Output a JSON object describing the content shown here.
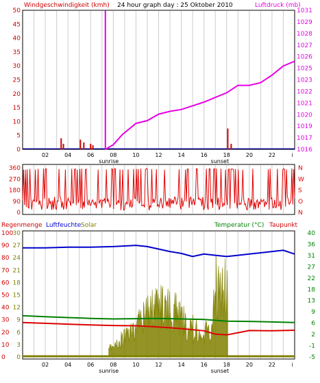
{
  "header": {
    "left": "Windgeschwindigkeit (kmh)",
    "center": "24 hour graph day : 25 Oktober 2010",
    "right": "Luftdruck (mb)"
  },
  "x_ticks": [
    "02",
    "04",
    "06",
    "08",
    "10",
    "12",
    "14",
    "16",
    "18",
    "20",
    "22",
    "i"
  ],
  "sun_labels": {
    "sunrise": "sunrise",
    "sunset": "sunset"
  },
  "colors": {
    "wind": "#cc0000",
    "pressure": "#e600e6",
    "direction": "#e00000",
    "humidity": "#0000cc",
    "solar": "#808000",
    "temperature": "#008000",
    "dewpoint": "#dd0000",
    "rain": "#cc0000",
    "frame": "#000000",
    "grid": "#cccccc"
  },
  "panel3_header": {
    "rain": "Regenmenge",
    "humidity": "Luftfeuchte",
    "solar": "Solar",
    "temperature": "Temperatur (°C)",
    "dewpoint": "Taupunkt"
  },
  "chart_data": [
    {
      "type": "line",
      "title": "24 hour graph day : 25 Oktober 2010",
      "x_range": [
        0,
        24
      ],
      "y_left_label": "Windgeschwindigkeit (kmh)",
      "y_left_ticks": [
        "0",
        "5",
        "10",
        "15",
        "20",
        "25",
        "30",
        "35",
        "40",
        "45",
        "50"
      ],
      "ylim_left": [
        0,
        50
      ],
      "y_right_label": "Luftdruck (mb)",
      "y_right_ticks": [
        "1016",
        "1017",
        "1019",
        "1020",
        "1021",
        "1022",
        "1023",
        "1025",
        "1026",
        "1027",
        "1028",
        "1029",
        "1031"
      ],
      "ylim_right": [
        1016,
        1031
      ],
      "series": [
        {
          "name": "Windgeschwindigkeit (kmh)",
          "style": "bars",
          "points": [
            [
              3.4,
              4
            ],
            [
              3.6,
              2
            ],
            [
              5.1,
              3.5
            ],
            [
              5.4,
              2.5
            ],
            [
              6.0,
              2
            ],
            [
              6.2,
              1.5
            ],
            [
              7.3,
              50
            ],
            [
              18.1,
              7.5
            ],
            [
              18.4,
              2
            ]
          ]
        },
        {
          "name": "Luftdruck (mb)",
          "style": "line",
          "points": [
            [
              7.3,
              1016.0
            ],
            [
              8.0,
              1016.5
            ],
            [
              8.8,
              1017.6
            ],
            [
              10.0,
              1018.8
            ],
            [
              11.0,
              1019.1
            ],
            [
              12.0,
              1019.8
            ],
            [
              13.0,
              1020.1
            ],
            [
              14.0,
              1020.3
            ],
            [
              15.0,
              1020.7
            ],
            [
              16.0,
              1021.1
            ],
            [
              17.0,
              1021.6
            ],
            [
              18.0,
              1022.1
            ],
            [
              19.0,
              1022.9
            ],
            [
              20.0,
              1022.9
            ],
            [
              21.0,
              1023.2
            ],
            [
              22.0,
              1024.0
            ],
            [
              23.0,
              1025.0
            ],
            [
              24.0,
              1025.5
            ]
          ]
        }
      ]
    },
    {
      "type": "line",
      "x_range": [
        0,
        24
      ],
      "y_left_ticks": [
        "360",
        "270",
        "180",
        "90",
        "0"
      ],
      "ylim": [
        0,
        360
      ],
      "y_right_ticks": [
        "N",
        "W",
        "S",
        "O",
        "N"
      ],
      "series": [
        {
          "name": "Windrichtung",
          "generator": {
            "seed": 17,
            "base": 50,
            "spread": 110,
            "spikes": 0.22,
            "spike_high": 355,
            "n": 300
          },
          "points": []
        }
      ]
    },
    {
      "type": "line",
      "x_range": [
        0,
        24
      ],
      "y_left_ticks_rain": [
        "0",
        "10",
        "20",
        "30",
        "40",
        "50",
        "60",
        "70",
        "80",
        "90",
        "100"
      ],
      "y_left_ticks_humidity": [
        "0",
        "3",
        "6",
        "9",
        "12",
        "15",
        "18",
        "21",
        "24",
        "27",
        "30"
      ],
      "ylim_left": [
        0,
        100
      ],
      "y_right_ticks": [
        "-5",
        "-1",
        "2",
        "6",
        "9",
        "13",
        "18",
        "22",
        "27",
        "31",
        "36",
        "40"
      ],
      "ylim_right": [
        -5,
        40
      ],
      "series": [
        {
          "name": "Luftfeuchte",
          "points": [
            [
              0,
              88
            ],
            [
              2,
              88
            ],
            [
              4,
              88.5
            ],
            [
              6,
              88.5
            ],
            [
              8,
              89
            ],
            [
              9,
              89.5
            ],
            [
              10,
              90
            ],
            [
              11,
              89
            ],
            [
              12,
              87
            ],
            [
              13,
              85
            ],
            [
              14,
              83.5
            ],
            [
              15,
              81
            ],
            [
              16,
              83
            ],
            [
              17,
              82
            ],
            [
              18,
              81
            ],
            [
              19,
              82
            ],
            [
              20,
              83
            ],
            [
              21,
              84
            ],
            [
              22,
              85
            ],
            [
              23,
              86
            ],
            [
              24,
              83
            ]
          ]
        },
        {
          "name": "Temperatur (°C)",
          "points": [
            [
              0,
              10
            ],
            [
              2,
              9.6
            ],
            [
              4,
              9.3
            ],
            [
              6,
              9.0
            ],
            [
              8,
              8.8
            ],
            [
              10,
              8.9
            ],
            [
              12,
              9.0
            ],
            [
              14,
              8.8
            ],
            [
              16,
              8.6
            ],
            [
              18,
              8.0
            ],
            [
              20,
              7.9
            ],
            [
              22,
              7.7
            ],
            [
              24,
              7.5
            ]
          ]
        },
        {
          "name": "Taupunkt",
          "points": [
            [
              0,
              7.5
            ],
            [
              2,
              7.2
            ],
            [
              4,
              6.9
            ],
            [
              6,
              6.6
            ],
            [
              8,
              6.4
            ],
            [
              10,
              6.3
            ],
            [
              12,
              5.9
            ],
            [
              14,
              5.3
            ],
            [
              16,
              4.5
            ],
            [
              17,
              3.3
            ],
            [
              18,
              3.0
            ],
            [
              19,
              3.8
            ],
            [
              20,
              4.6
            ],
            [
              22,
              4.5
            ],
            [
              24,
              4.7
            ]
          ]
        },
        {
          "name": "Solar",
          "style": "area",
          "generator": {
            "seed": 5,
            "start": 7.6,
            "end": 18.1,
            "n": 220
          },
          "points": []
        }
      ]
    }
  ]
}
